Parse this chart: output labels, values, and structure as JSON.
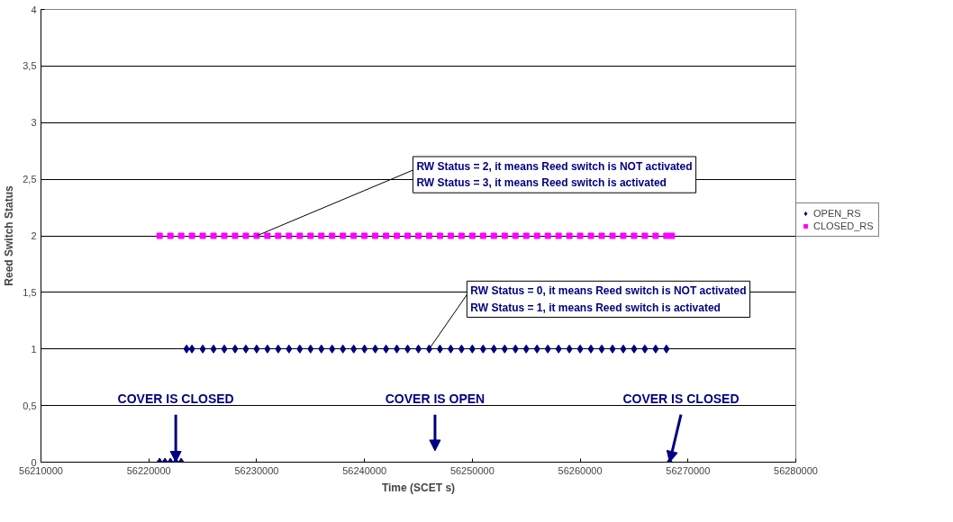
{
  "chart_data": {
    "type": "scatter",
    "xlabel": "Time (SCET s)",
    "ylabel": "Reed Switch Status",
    "xlim": [
      56210000,
      56280000
    ],
    "xticks": [
      56210000,
      56220000,
      56230000,
      56240000,
      56250000,
      56260000,
      56270000,
      56280000
    ],
    "ylim": [
      0,
      4
    ],
    "yticks": [
      0,
      {
        "value": 0.5,
        "label": "0,5"
      },
      1,
      {
        "value": 1.5,
        "label": "1,5"
      },
      2,
      {
        "value": 2.5,
        "label": "2,5"
      },
      3,
      {
        "value": 3.5,
        "label": "3,5"
      },
      4
    ],
    "grid": "y",
    "legend": "right",
    "series": [
      {
        "name": "OPEN_RS",
        "color": "#000080",
        "marker": "diamond",
        "x": [
          56221000,
          56221500,
          56222000,
          56222500,
          56223000,
          56223500,
          56224000,
          56225000,
          56226000,
          56227000,
          56228000,
          56229000,
          56230000,
          56231000,
          56232000,
          56233000,
          56234000,
          56235000,
          56236000,
          56237000,
          56238000,
          56239000,
          56240000,
          56241000,
          56242000,
          56243000,
          56244000,
          56245000,
          56246000,
          56247000,
          56248000,
          56249000,
          56250000,
          56251000,
          56252000,
          56253000,
          56254000,
          56255000,
          56256000,
          56257000,
          56258000,
          56259000,
          56260000,
          56261000,
          56262000,
          56263000,
          56264000,
          56265000,
          56266000,
          56267000,
          56268000,
          56268300
        ],
        "values": [
          0,
          0,
          0,
          0,
          0,
          1,
          1,
          1,
          1,
          1,
          1,
          1,
          1,
          1,
          1,
          1,
          1,
          1,
          1,
          1,
          1,
          1,
          1,
          1,
          1,
          1,
          1,
          1,
          1,
          1,
          1,
          1,
          1,
          1,
          1,
          1,
          1,
          1,
          1,
          1,
          1,
          1,
          1,
          1,
          1,
          1,
          1,
          1,
          1,
          1,
          1,
          0
        ]
      },
      {
        "name": "CLOSED_RS",
        "color": "#ff00ff",
        "marker": "square",
        "x": [
          56221000,
          56222000,
          56223000,
          56224000,
          56225000,
          56226000,
          56227000,
          56228000,
          56229000,
          56230000,
          56231000,
          56232000,
          56233000,
          56234000,
          56235000,
          56236000,
          56237000,
          56238000,
          56239000,
          56240000,
          56241000,
          56242000,
          56243000,
          56244000,
          56245000,
          56246000,
          56247000,
          56248000,
          56249000,
          56250000,
          56251000,
          56252000,
          56253000,
          56254000,
          56255000,
          56256000,
          56257000,
          56258000,
          56259000,
          56260000,
          56261000,
          56262000,
          56263000,
          56264000,
          56265000,
          56266000,
          56267000,
          56268000,
          56268500
        ],
        "values": [
          2,
          2,
          2,
          2,
          2,
          2,
          2,
          2,
          2,
          2,
          2,
          2,
          2,
          2,
          2,
          2,
          2,
          2,
          2,
          2,
          2,
          2,
          2,
          2,
          2,
          2,
          2,
          2,
          2,
          2,
          2,
          2,
          2,
          2,
          2,
          2,
          2,
          2,
          2,
          2,
          2,
          2,
          2,
          2,
          2,
          2,
          2,
          2,
          2
        ]
      }
    ],
    "annotations": [
      {
        "text": "RW Status = 2, it means Reed switch is NOT activated\nRW Status = 3, it means Reed switch is activated",
        "x": 56230000,
        "y": 2
      },
      {
        "text": "RW Status = 0, it means Reed switch is NOT activated\nRW Status = 1, it means Reed switch is activated",
        "x": 56246000,
        "y": 1
      },
      {
        "text": "COVER IS CLOSED",
        "x": 56222500,
        "y": 0
      },
      "COVER IS OPEN",
      {
        "text": "COVER IS CLOSED",
        "x": 56268300,
        "y": 0
      }
    ]
  }
}
